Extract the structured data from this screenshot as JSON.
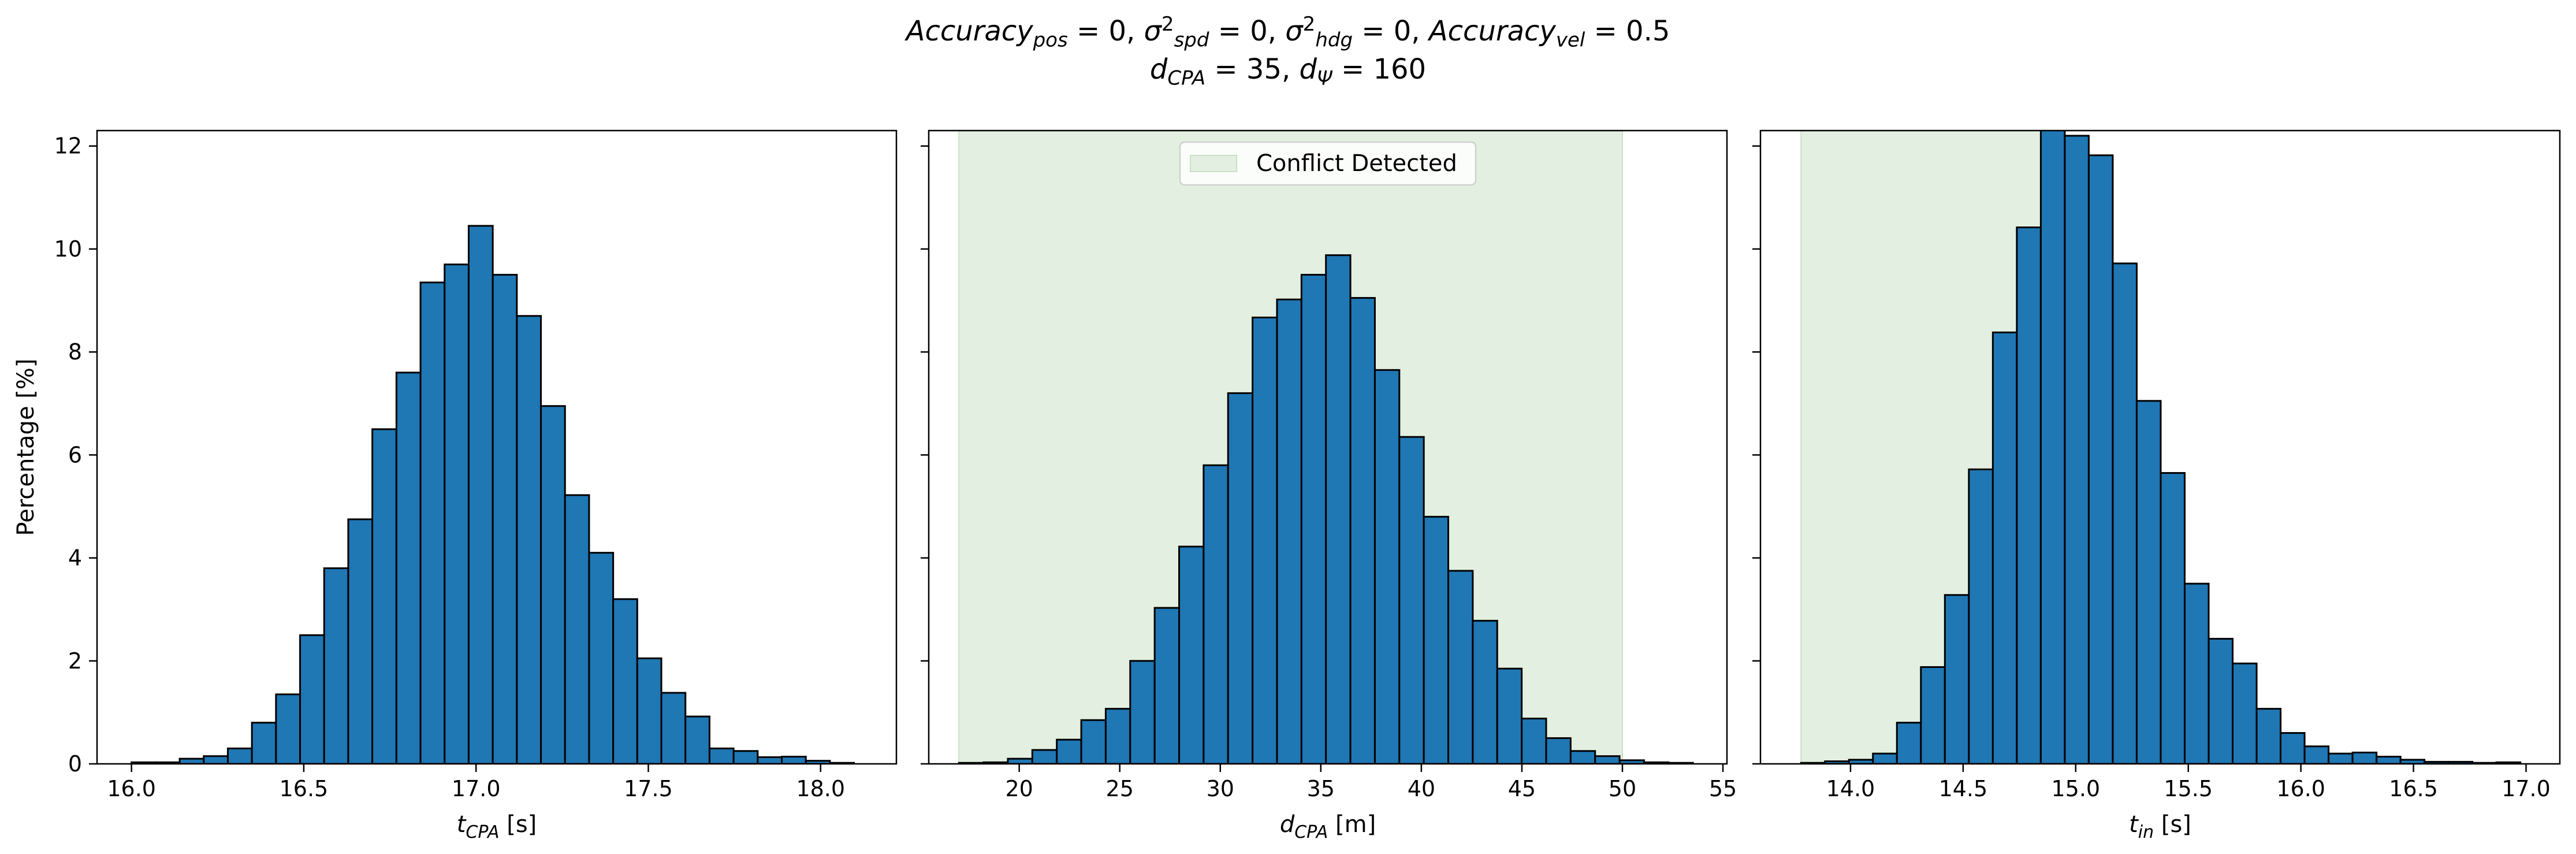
{
  "figure": {
    "title_parts": [
      {
        "text": "Accuracy",
        "style": "italic"
      },
      {
        "text": "pos",
        "style": "sub"
      },
      {
        "text": " = 0, ",
        "style": "normal"
      },
      {
        "text": "σ",
        "style": "italic"
      },
      {
        "text": "2",
        "style": "sup"
      },
      {
        "text": "spd",
        "style": "sub"
      },
      {
        "text": " = 0, ",
        "style": "normal"
      },
      {
        "text": "σ",
        "style": "italic"
      },
      {
        "text": "2",
        "style": "sup"
      },
      {
        "text": "hdg",
        "style": "sub"
      },
      {
        "text": " = 0, ",
        "style": "normal"
      },
      {
        "text": "Accuracy",
        "style": "italic"
      },
      {
        "text": "vel",
        "style": "sub"
      },
      {
        "text": " = 0.5",
        "style": "normal"
      }
    ],
    "subtitle_parts": [
      {
        "text": "d",
        "style": "italic"
      },
      {
        "text": "CPA",
        "style": "sub"
      },
      {
        "text": " = 35, ",
        "style": "normal"
      },
      {
        "text": "d",
        "style": "italic"
      },
      {
        "text": "Ψ",
        "style": "sub"
      },
      {
        "text": " = 160",
        "style": "normal"
      }
    ]
  },
  "chart_data": [
    {
      "type": "bar",
      "subtype": "histogram",
      "xlabel_var": "t",
      "xlabel_sub": "CPA",
      "xlabel_unit": " [s]",
      "ylabel": "Percentage [%]",
      "xlim": [
        15.9,
        18.22
      ],
      "ylim": [
        0,
        12.3
      ],
      "xticks": [
        16.0,
        16.5,
        17.0,
        17.5,
        18.0
      ],
      "xtick_labels": [
        "16.0",
        "16.5",
        "17.0",
        "17.5",
        "18.0"
      ],
      "yticks": [
        0,
        2,
        4,
        6,
        8,
        10,
        12
      ],
      "ytick_labels": [
        "0",
        "2",
        "4",
        "6",
        "8",
        "10",
        "12"
      ],
      "bins_start": 16.0,
      "bin_width": 0.0699,
      "values": [
        0.03,
        0.03,
        0.1,
        0.15,
        0.3,
        0.8,
        1.35,
        2.5,
        3.8,
        4.75,
        6.5,
        7.6,
        9.35,
        9.7,
        10.45,
        9.5,
        8.7,
        6.95,
        5.22,
        4.1,
        3.2,
        2.05,
        1.38,
        0.92,
        0.3,
        0.25,
        0.13,
        0.14,
        0.06,
        0.02
      ],
      "bar_color": "#1f77b4"
    },
    {
      "type": "bar",
      "subtype": "histogram",
      "xlabel_var": "d",
      "xlabel_sub": "CPA",
      "xlabel_unit": " [m]",
      "xlim": [
        15.5,
        55.2
      ],
      "ylim": [
        0,
        12.3
      ],
      "xticks": [
        20,
        25,
        30,
        35,
        40,
        45,
        50,
        55
      ],
      "xtick_labels": [
        "20",
        "25",
        "30",
        "35",
        "40",
        "45",
        "50",
        "55"
      ],
      "yticks": [
        0,
        2,
        4,
        6,
        8,
        10,
        12
      ],
      "bins_start": 17.0,
      "bin_width": 1.217,
      "values": [
        0.02,
        0.03,
        0.1,
        0.27,
        0.47,
        0.85,
        1.07,
        2.0,
        3.03,
        4.22,
        5.8,
        7.2,
        8.67,
        9.02,
        9.5,
        9.88,
        9.05,
        7.65,
        6.35,
        4.8,
        3.75,
        2.78,
        1.85,
        0.88,
        0.5,
        0.25,
        0.15,
        0.07,
        0.03,
        0.02
      ],
      "bar_color": "#1f77b4",
      "shaded_region": [
        17.0,
        50.0
      ],
      "shade_color": "#e3f0e1",
      "legend": {
        "label": "Conflict Detected",
        "position": "upper center"
      }
    },
    {
      "type": "bar",
      "subtype": "histogram",
      "xlabel_var": "t",
      "xlabel_sub": "in",
      "xlabel_unit": " [s]",
      "xlim": [
        13.6,
        17.15
      ],
      "ylim": [
        0,
        12.3
      ],
      "xticks": [
        14.0,
        14.5,
        15.0,
        15.5,
        16.0,
        16.5,
        17.0
      ],
      "xtick_labels": [
        "14.0",
        "14.5",
        "15.0",
        "15.5",
        "16.0",
        "16.5",
        "17.0"
      ],
      "yticks": [
        0,
        2,
        4,
        6,
        8,
        10,
        12
      ],
      "bins_start": 13.78,
      "bin_width": 0.1065,
      "values": [
        0.02,
        0.05,
        0.08,
        0.2,
        0.8,
        1.88,
        3.28,
        5.72,
        8.38,
        10.42,
        12.55,
        12.2,
        11.82,
        9.72,
        7.05,
        5.65,
        3.5,
        2.43,
        1.95,
        1.07,
        0.6,
        0.34,
        0.2,
        0.22,
        0.14,
        0.08,
        0.04,
        0.04,
        0.02,
        0.03
      ],
      "bar_color": "#1f77b4",
      "shaded_region": [
        13.78,
        14.95
      ],
      "shade_color": "#e3f0e1"
    }
  ]
}
